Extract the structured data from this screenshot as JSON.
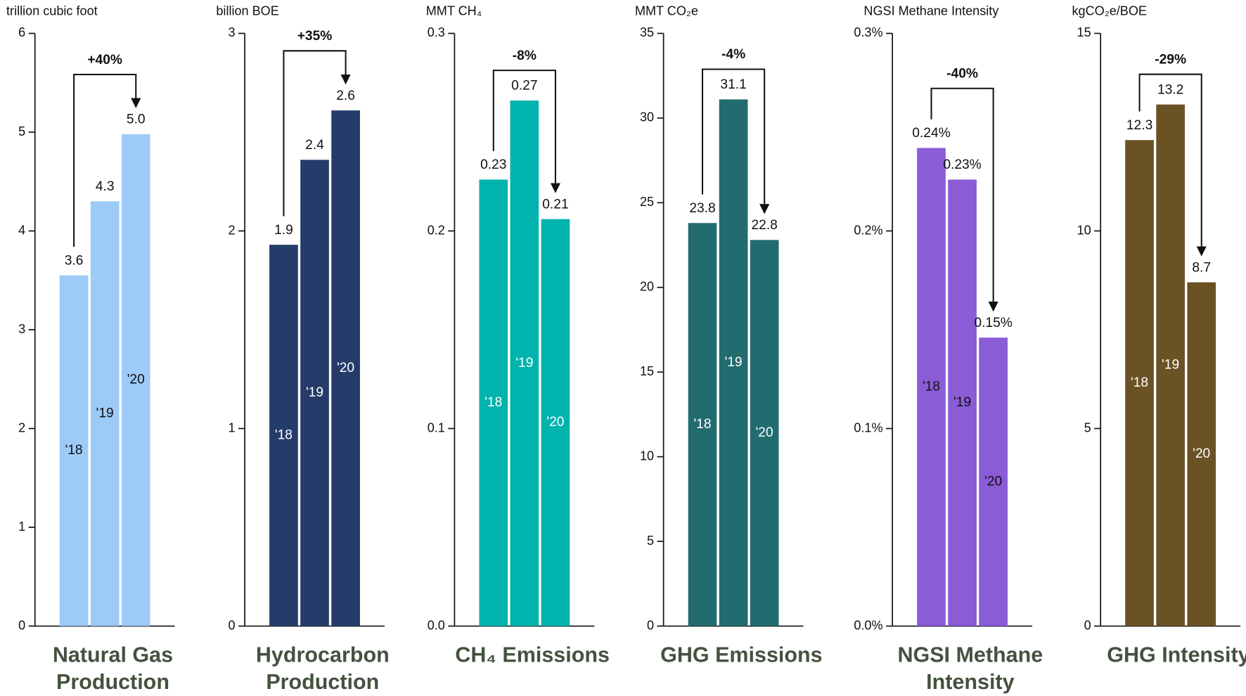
{
  "chart_data": [
    {
      "type": "bar",
      "unit": "trillion cubic foot",
      "title": [
        "Natural Gas",
        "Production"
      ],
      "annotation": "+40%",
      "categories": [
        "'18",
        "'19",
        "'20"
      ],
      "values": [
        3.55,
        4.3,
        4.98
      ],
      "value_labels": [
        "3.6",
        "4.3",
        "5.0"
      ],
      "color": "#9dcbf8",
      "ylim": [
        0,
        6
      ],
      "yticks": [
        0,
        1,
        2,
        3,
        4,
        5,
        6
      ]
    },
    {
      "type": "bar",
      "unit": "billion BOE",
      "title": [
        "Hydrocarbon",
        "Production"
      ],
      "annotation": "+35%",
      "categories": [
        "'18",
        "'19",
        "'20"
      ],
      "values": [
        1.93,
        2.36,
        2.61
      ],
      "value_labels": [
        "1.9",
        "2.4",
        "2.6"
      ],
      "color": "#253c6a",
      "ylim": [
        0,
        3
      ],
      "yticks": [
        0,
        1,
        2,
        3
      ]
    },
    {
      "type": "bar",
      "unit": "MMT CH₄",
      "title": [
        "CH₄ Emissions"
      ],
      "annotation": "-8%",
      "categories": [
        "'18",
        "'19",
        "'20"
      ],
      "values": [
        0.226,
        0.266,
        0.206
      ],
      "value_labels": [
        "0.23",
        "0.27",
        "0.21"
      ],
      "color": "#00b3ad",
      "ylim": [
        0,
        0.3
      ],
      "yticks": [
        {
          "value": 0,
          "label": "0.0"
        },
        0.1,
        0.2,
        0.3
      ]
    },
    {
      "type": "bar",
      "unit": "MMT CO₂e",
      "title": [
        "GHG Emissions"
      ],
      "annotation": "-4%",
      "categories": [
        "'18",
        "'19",
        "'20"
      ],
      "values": [
        23.8,
        31.1,
        22.8
      ],
      "value_labels": [
        "23.8",
        "31.1",
        "22.8"
      ],
      "color": "#226b6e",
      "ylim": [
        0,
        35
      ],
      "yticks": [
        0,
        5,
        10,
        15,
        20,
        25,
        30,
        35
      ]
    },
    {
      "type": "bar",
      "unit": "NGSI Methane Intensity",
      "title": [
        "NGSI Methane",
        "Intensity"
      ],
      "annotation": "-40%",
      "categories": [
        "'18",
        "'19",
        "'20"
      ],
      "values": [
        0.242,
        0.226,
        0.146
      ],
      "value_labels": [
        "0.24%",
        "0.23%",
        "0.15%"
      ],
      "color": "#8a5cd6",
      "ylim": [
        0,
        0.3
      ],
      "yticks": [
        {
          "value": 0,
          "label": "0.0%"
        },
        {
          "value": 0.1,
          "label": "0.1%"
        },
        {
          "value": 0.2,
          "label": "0.2%"
        },
        {
          "value": 0.3,
          "label": "0.3%"
        }
      ]
    },
    {
      "type": "bar",
      "unit": "kgCO₂e/BOE",
      "title": [
        "GHG Intensity"
      ],
      "annotation": "-29%",
      "categories": [
        "'18",
        "'19",
        "'20"
      ],
      "values": [
        12.3,
        13.2,
        8.7
      ],
      "value_labels": [
        "12.3",
        "13.2",
        "8.7"
      ],
      "color": "#6b5224",
      "ylim": [
        0,
        15
      ],
      "yticks": [
        0,
        5,
        10,
        15
      ]
    }
  ]
}
